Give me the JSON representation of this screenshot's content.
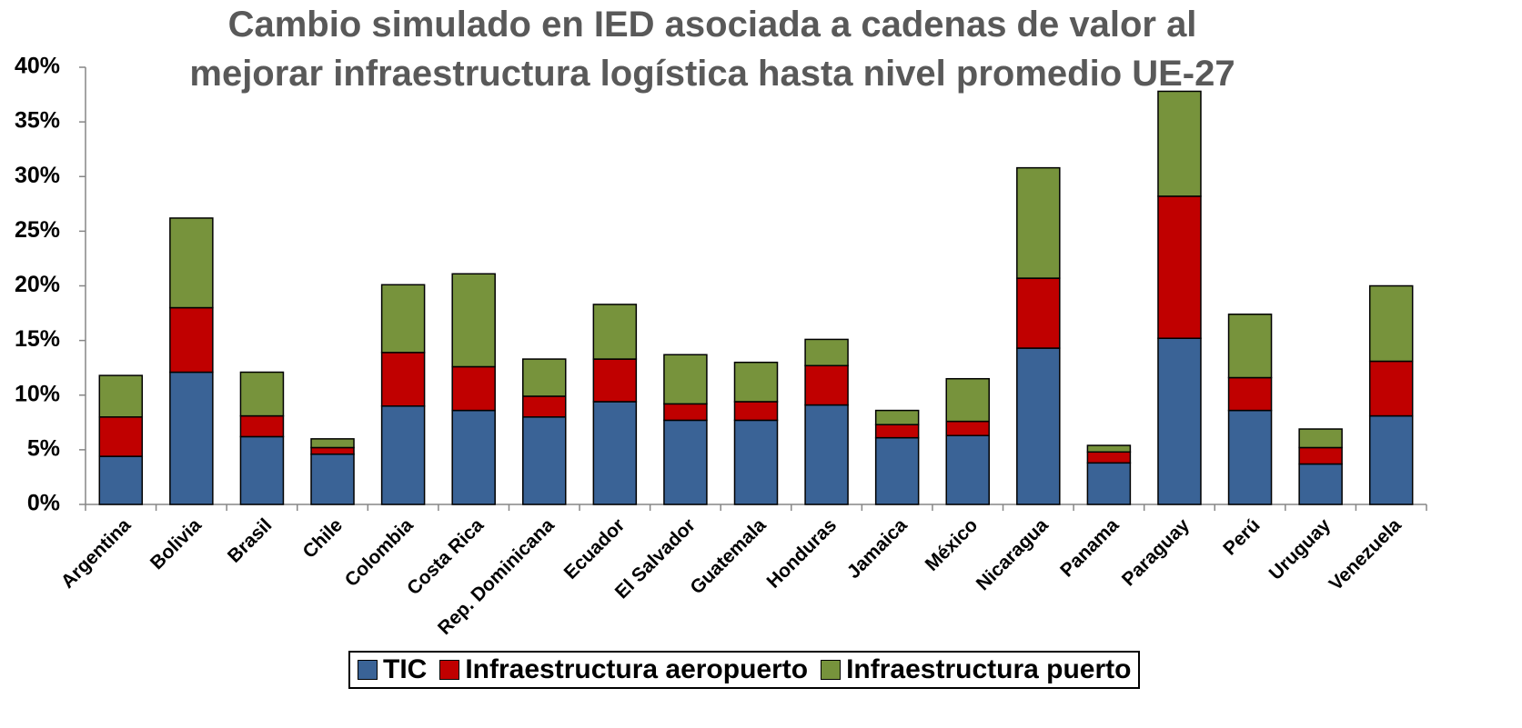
{
  "chart_data": {
    "type": "stacked_bar",
    "title": "Cambio simulado en IED asociada a cadenas de valor al mejorar infraestructura logística hasta nivel promedio UE-27",
    "categories": [
      "Argentina",
      "Bolivia",
      "Brasil",
      "Chile",
      "Colombia",
      "Costa Rica",
      "Rep. Dominicana",
      "Ecuador",
      "El Salvador",
      "Guatemala",
      "Honduras",
      "Jamaica",
      "México",
      "Nicaragua",
      "Panama",
      "Paraguay",
      "Perú",
      "Uruguay",
      "Venezuela"
    ],
    "series": [
      {
        "name": "TIC",
        "color": "#3a6396",
        "values": [
          4.4,
          12.1,
          6.2,
          4.6,
          9.0,
          8.6,
          8.0,
          9.4,
          7.7,
          7.7,
          9.1,
          6.1,
          6.3,
          14.3,
          3.8,
          15.2,
          8.6,
          3.7,
          8.1
        ]
      },
      {
        "name": "Infraestructura aeropuerto",
        "color": "#c00000",
        "values": [
          3.6,
          5.9,
          1.9,
          0.6,
          4.9,
          4.0,
          1.9,
          3.9,
          1.5,
          1.7,
          3.6,
          1.2,
          1.3,
          6.4,
          1.0,
          13.0,
          3.0,
          1.5,
          5.0
        ]
      },
      {
        "name": "Infraestructura puerto",
        "color": "#77933c",
        "values": [
          3.8,
          8.2,
          4.0,
          0.8,
          6.2,
          8.5,
          3.4,
          5.0,
          4.5,
          3.6,
          2.4,
          1.3,
          3.9,
          10.1,
          0.6,
          9.6,
          5.8,
          1.7,
          6.9
        ]
      }
    ],
    "ylim": [
      0,
      40
    ],
    "yticks": [
      {
        "value": 0,
        "label": "0%"
      },
      {
        "value": 5,
        "label": "5%"
      },
      {
        "value": 10,
        "label": "10%"
      },
      {
        "value": 15,
        "label": "15%"
      },
      {
        "value": 20,
        "label": "20%"
      },
      {
        "value": 25,
        "label": "25%"
      },
      {
        "value": 30,
        "label": "30%"
      },
      {
        "value": 35,
        "label": "35%"
      },
      {
        "value": 40,
        "label": "40%"
      }
    ],
    "grid": false,
    "legend": "bottom"
  }
}
